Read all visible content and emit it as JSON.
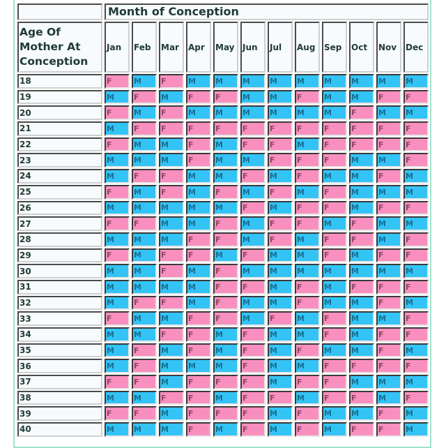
{
  "header": {
    "title": "Month of Conception",
    "age_heading": "Age Of Mother At Conception",
    "age_heading_lines": [
      "Age Of",
      "Mother At",
      "Conception"
    ]
  },
  "months": [
    "Jan",
    "Feb",
    "Mar",
    "Apr",
    "May",
    "Jun",
    "Jul",
    "Aug",
    "Sep",
    "Oct",
    "Nov",
    "Dec"
  ],
  "legend_colors": {
    "M": "#33c3f5",
    "F": "#f98fbf"
  },
  "rows": [
    {
      "age": "18",
      "values": [
        "F",
        "M",
        "F",
        "M",
        "M",
        "M",
        "M",
        "M",
        "M",
        "M",
        "M",
        "M"
      ]
    },
    {
      "age": "19",
      "values": [
        "M",
        "F",
        "M",
        "F",
        "F",
        "M",
        "M",
        "F",
        "M",
        "M",
        "F",
        "F"
      ]
    },
    {
      "age": "20",
      "values": [
        "F",
        "M",
        "F",
        "M",
        "M",
        "M",
        "M",
        "M",
        "M",
        "F",
        "M",
        "M"
      ]
    },
    {
      "age": "21",
      "values": [
        "M",
        "F",
        "F",
        "F",
        "F",
        "F",
        "F",
        "F",
        "F",
        "F",
        "F",
        "F"
      ]
    },
    {
      "age": "22",
      "values": [
        "F",
        "M",
        "M",
        "F",
        "M",
        "F",
        "F",
        "M",
        "F",
        "F",
        "F",
        "F"
      ]
    },
    {
      "age": "23",
      "values": [
        "M",
        "M",
        "M",
        "F",
        "M",
        "M",
        "F",
        "F",
        "F",
        "M",
        "M",
        "F"
      ]
    },
    {
      "age": "24",
      "values": [
        "M",
        "F",
        "F",
        "M",
        "M",
        "F",
        "M",
        "F",
        "M",
        "M",
        "F",
        "M"
      ]
    },
    {
      "age": "25",
      "values": [
        "F",
        "M",
        "F",
        "M",
        "F",
        "M",
        "F",
        "M",
        "F",
        "M",
        "M",
        "M"
      ]
    },
    {
      "age": "26",
      "values": [
        "M",
        "M",
        "M",
        "M",
        "M",
        "F",
        "M",
        "F",
        "F",
        "M",
        "F",
        "F"
      ]
    },
    {
      "age": "27",
      "values": [
        "F",
        "F",
        "M",
        "M",
        "F",
        "M",
        "F",
        "F",
        "M",
        "F",
        "M",
        "M"
      ]
    },
    {
      "age": "28",
      "values": [
        "M",
        "M",
        "M",
        "F",
        "F",
        "M",
        "F",
        "M",
        "F",
        "F",
        "M",
        "F"
      ]
    },
    {
      "age": "29",
      "values": [
        "F",
        "M",
        "F",
        "F",
        "M",
        "F",
        "M",
        "M",
        "F",
        "M",
        "F",
        "F"
      ]
    },
    {
      "age": "30",
      "values": [
        "M",
        "M",
        "F",
        "M",
        "F",
        "M",
        "M",
        "M",
        "M",
        "M",
        "M",
        "M"
      ]
    },
    {
      "age": "31",
      "values": [
        "M",
        "M",
        "M",
        "M",
        "F",
        "F",
        "M",
        "F",
        "M",
        "F",
        "F",
        "F"
      ]
    },
    {
      "age": "32",
      "values": [
        "M",
        "F",
        "F",
        "M",
        "F",
        "M",
        "M",
        "F",
        "M",
        "M",
        "F",
        "M"
      ]
    },
    {
      "age": "33",
      "values": [
        "F",
        "M",
        "M",
        "F",
        "F",
        "M",
        "F",
        "M",
        "F",
        "M",
        "M",
        "F"
      ]
    },
    {
      "age": "34",
      "values": [
        "M",
        "M",
        "F",
        "F",
        "M",
        "F",
        "M",
        "M",
        "F",
        "M",
        "F",
        "F"
      ]
    },
    {
      "age": "35",
      "values": [
        "M",
        "F",
        "M",
        "F",
        "M",
        "F",
        "M",
        "F",
        "M",
        "M",
        "F",
        "M"
      ]
    },
    {
      "age": "36",
      "values": [
        "M",
        "F",
        "M",
        "M",
        "M",
        "F",
        "M",
        "M",
        "F",
        "F",
        "F",
        "F"
      ]
    },
    {
      "age": "37",
      "values": [
        "F",
        "F",
        "M",
        "F",
        "F",
        "F",
        "M",
        "F",
        "F",
        "M",
        "M",
        "M"
      ]
    },
    {
      "age": "38",
      "values": [
        "M",
        "M",
        "F",
        "F",
        "M",
        "F",
        "F",
        "M",
        "F",
        "F",
        "M",
        "F"
      ]
    },
    {
      "age": "39",
      "values": [
        "F",
        "F",
        "M",
        "F",
        "F",
        "F",
        "M",
        "F",
        "M",
        "M",
        "F",
        "M"
      ]
    },
    {
      "age": "40",
      "values": [
        "M",
        "M",
        "M",
        "F",
        "M",
        "F",
        "M",
        "F",
        "M",
        "F",
        "F",
        "M"
      ]
    }
  ]
}
